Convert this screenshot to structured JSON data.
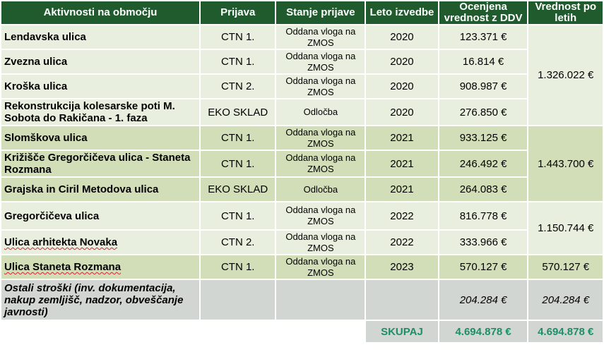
{
  "headers": {
    "activity": "Aktivnosti na območju",
    "application": "Prijava",
    "status": "Stanje prijave",
    "year": "Leto izvedbe",
    "estimated": "Ocenjena vrednost z DDV",
    "by_year": "Vrednost po letih"
  },
  "rows": [
    {
      "name": "Lendavska ulica",
      "app": "CTN 1.",
      "status": "Oddana vloga na ZMOS",
      "year": "2020",
      "value": "123.371 €"
    },
    {
      "name": "Zvezna ulica",
      "app": "CTN 1.",
      "status": "Oddana vloga na ZMOS",
      "year": "2020",
      "value": "16.814 €"
    },
    {
      "name": "Kroška ulica",
      "app": "CTN 2.",
      "status": "Oddana vloga na ZMOS",
      "year": "2020",
      "value": "908.987 €"
    },
    {
      "name": "Rekonstrukcija kolesarske poti M. Sobota do  Rakičana - 1. faza",
      "app": "EKO SKLAD",
      "status": "Odločba",
      "year": "2020",
      "value": "276.850 €"
    },
    {
      "name": "Slomškova ulica",
      "app": "CTN 1.",
      "status": "Oddana vloga na ZMOS",
      "year": "2021",
      "value": "933.125 €"
    },
    {
      "name": "Križišče Gregorčičeva ulica - Staneta Rozmana",
      "app": "CTN 1.",
      "status": "Oddana vloga na ZMOS",
      "year": "2021",
      "value": "246.492 €"
    },
    {
      "name": "Grajska in Ciril Metodova ulica",
      "app": "EKO SKLAD",
      "status": "Odločba",
      "year": "2021",
      "value": "264.083 €"
    },
    {
      "name": "Gregorčičeva ulica",
      "app": "CTN 1.",
      "status": "Oddana vloga na ZMOS",
      "year": "2022",
      "value": "816.778 €"
    },
    {
      "name": "Ulica arhitekta Novaka",
      "app": "CTN 2.",
      "status": "Oddana vloga na ZMOS",
      "year": "2022",
      "value": "333.966 €"
    },
    {
      "name": "Ulica Staneta Rozmana",
      "app": "CTN 1.",
      "status": "Oddana vloga na ZMOS",
      "year": "2023",
      "value": "570.127 €"
    }
  ],
  "year_totals": {
    "y2020": "1.326.022 €",
    "y2021": "1.443.700 €",
    "y2022": "1.150.744 €",
    "y2023": "570.127 €"
  },
  "other": {
    "name": "Ostali stroški (inv. dokumentacija, nakup zemljišč, nadzor, obveščanje javnosti)",
    "value": "204.284 €",
    "by_year": "204.284 €"
  },
  "total": {
    "label": "SKUPAJ",
    "value": "4.694.878 €",
    "by_year": "4.694.878 €"
  },
  "colors": {
    "header_bg": "#1f5b2d",
    "row_light": "#e9efdf",
    "row_dark": "#d2deb7",
    "row_gray": "#d2d6d2",
    "total_text": "#1f8d6a"
  }
}
